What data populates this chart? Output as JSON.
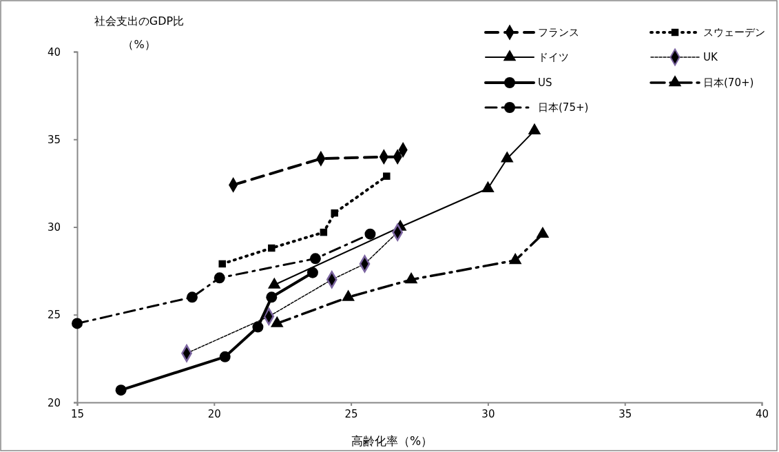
{
  "chart_data": {
    "type": "line",
    "xlabel": "高齢化率（%）",
    "ylabel": "社会支出のGDP比（%）",
    "xlim": [
      15,
      40
    ],
    "xticks": [
      15,
      20,
      25,
      30,
      35,
      40
    ],
    "ylim": [
      20,
      40
    ],
    "yticks": [
      20,
      25,
      30,
      35,
      40
    ],
    "legend": "top right",
    "series": [
      {
        "name": "フランス",
        "color": "#000000",
        "marker": "diamond",
        "line_style": "dashed",
        "x": [
          20.7,
          23.9,
          26.2,
          26.7,
          26.9
        ],
        "values": [
          32.4,
          33.9,
          34.0,
          34.0,
          34.4
        ]
      },
      {
        "name": "スウェーデン",
        "color": "#000000",
        "marker": "square",
        "line_style": "dotted",
        "x": [
          20.3,
          22.1,
          24.0,
          24.4,
          26.3
        ],
        "values": [
          27.9,
          28.8,
          29.7,
          30.8,
          32.9
        ]
      },
      {
        "name": "ドイツ",
        "color": "#000000",
        "marker": "triangle",
        "line_style": "solid",
        "x": [
          22.2,
          26.8,
          30.0,
          30.7,
          31.7
        ],
        "values": [
          26.7,
          30.0,
          32.2,
          33.9,
          35.5
        ]
      },
      {
        "name": "UK",
        "color": "#000000",
        "marker": "diamond",
        "line_style": "dotted",
        "x": [
          19.0,
          22.0,
          24.3,
          25.5,
          26.7
        ],
        "values": [
          22.8,
          24.9,
          27.0,
          27.9,
          29.7
        ]
      },
      {
        "name": "US",
        "color": "#000000",
        "marker": "circle",
        "line_style": "solid",
        "x": [
          16.6,
          20.4,
          21.6,
          22.1,
          23.6
        ],
        "values": [
          20.7,
          22.6,
          24.3,
          26.0,
          27.4
        ]
      },
      {
        "name": "日本(70+)",
        "color": "#000000",
        "marker": "triangle",
        "line_style": "dashed",
        "x": [
          22.3,
          24.9,
          27.2,
          31.0,
          32.0
        ],
        "values": [
          24.5,
          26.0,
          27.0,
          28.1,
          29.6
        ]
      },
      {
        "name": "日本(75+)",
        "color": "#000000",
        "marker": "circle",
        "line_style": "dashed",
        "x": [
          15.0,
          19.2,
          20.2,
          23.7,
          25.7
        ],
        "values": [
          24.5,
          26.0,
          27.1,
          28.2,
          29.6
        ]
      }
    ]
  }
}
